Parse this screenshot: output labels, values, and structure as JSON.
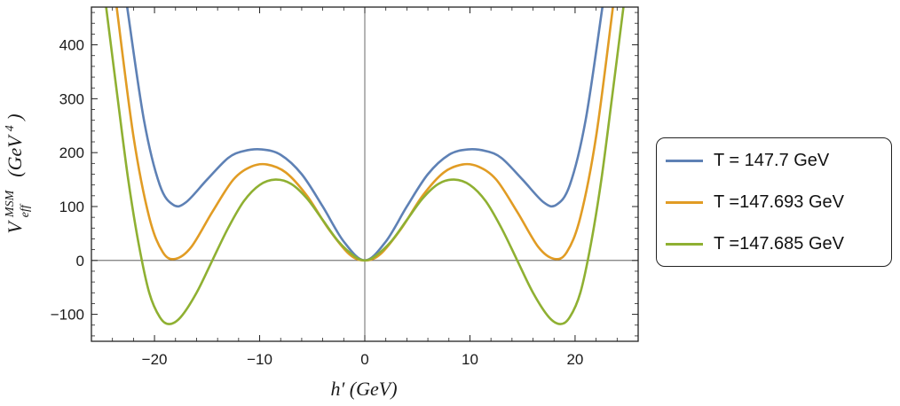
{
  "chart_data": {
    "type": "line",
    "title": "",
    "xlabel": "h′ (GeV)",
    "ylabel_main": "V",
    "ylabel_sup": "MSM",
    "ylabel_sub": "eff",
    "ylabel_units_open": "(GeV",
    "ylabel_units_power": "4",
    "ylabel_units_close": ")",
    "xlim": [
      -26,
      26
    ],
    "ylim": [
      -150,
      470
    ],
    "x_ticks": [
      -20,
      -10,
      0,
      10,
      20
    ],
    "x_tick_labels": [
      "−20",
      "−10",
      "0",
      "10",
      "20"
    ],
    "y_ticks": [
      -100,
      0,
      100,
      200,
      300,
      400
    ],
    "y_tick_labels": [
      "−100",
      "0",
      "100",
      "200",
      "300",
      "400"
    ],
    "series": [
      {
        "name": "T = 147.7 GeV",
        "color": "#5e81b5",
        "x": [
          -22.6,
          -21,
          -19.5,
          -18.2,
          -17,
          -15,
          -13,
          -11.5,
          -9.8,
          -8,
          -6,
          -4,
          -2,
          0,
          2,
          4,
          6,
          8,
          9.8,
          11.5,
          13,
          15,
          17,
          18.2,
          19.5,
          21,
          22.6
        ],
        "y": [
          470,
          260,
          140,
          103,
          108,
          150,
          190,
          203,
          206,
          196,
          160,
          100,
          35,
          0,
          35,
          100,
          160,
          196,
          206,
          203,
          190,
          150,
          108,
          103,
          140,
          260,
          470
        ]
      },
      {
        "name": "T =147.693 GeV",
        "color": "#e19c24",
        "x": [
          -23.6,
          -22,
          -20.5,
          -19.2,
          -18,
          -16.5,
          -14.5,
          -12.5,
          -10.8,
          -9.3,
          -7.5,
          -5.5,
          -3.5,
          -1.5,
          0,
          1.5,
          3.5,
          5.5,
          7.5,
          9.3,
          10.8,
          12.5,
          14.5,
          16.5,
          18,
          19.2,
          20.5,
          22,
          23.6
        ],
        "y": [
          470,
          230,
          80,
          15,
          3,
          25,
          90,
          150,
          174,
          178,
          163,
          120,
          60,
          12,
          0,
          12,
          60,
          120,
          163,
          178,
          174,
          150,
          90,
          25,
          3,
          15,
          80,
          230,
          470
        ]
      },
      {
        "name": "T =147.685 GeV",
        "color": "#8fb032",
        "x": [
          -24.6,
          -23.5,
          -22.5,
          -21.5,
          -20.5,
          -19.5,
          -18.6,
          -17.5,
          -16,
          -14.5,
          -13,
          -11.5,
          -10,
          -8.5,
          -7,
          -5.5,
          -4,
          -2.5,
          -1,
          0,
          1,
          2.5,
          4,
          5.5,
          7,
          8.5,
          10,
          11.5,
          13,
          14.5,
          16,
          17.5,
          18.6,
          19.5,
          20.5,
          21.5,
          22.5,
          23.5,
          24.6
        ],
        "y": [
          470,
          300,
          150,
          30,
          -60,
          -105,
          -118,
          -105,
          -60,
          0,
          60,
          110,
          140,
          150,
          142,
          115,
          75,
          35,
          8,
          0,
          8,
          35,
          75,
          115,
          142,
          150,
          140,
          110,
          60,
          0,
          -60,
          -105,
          -118,
          -105,
          -60,
          30,
          150,
          300,
          470
        ]
      }
    ]
  }
}
